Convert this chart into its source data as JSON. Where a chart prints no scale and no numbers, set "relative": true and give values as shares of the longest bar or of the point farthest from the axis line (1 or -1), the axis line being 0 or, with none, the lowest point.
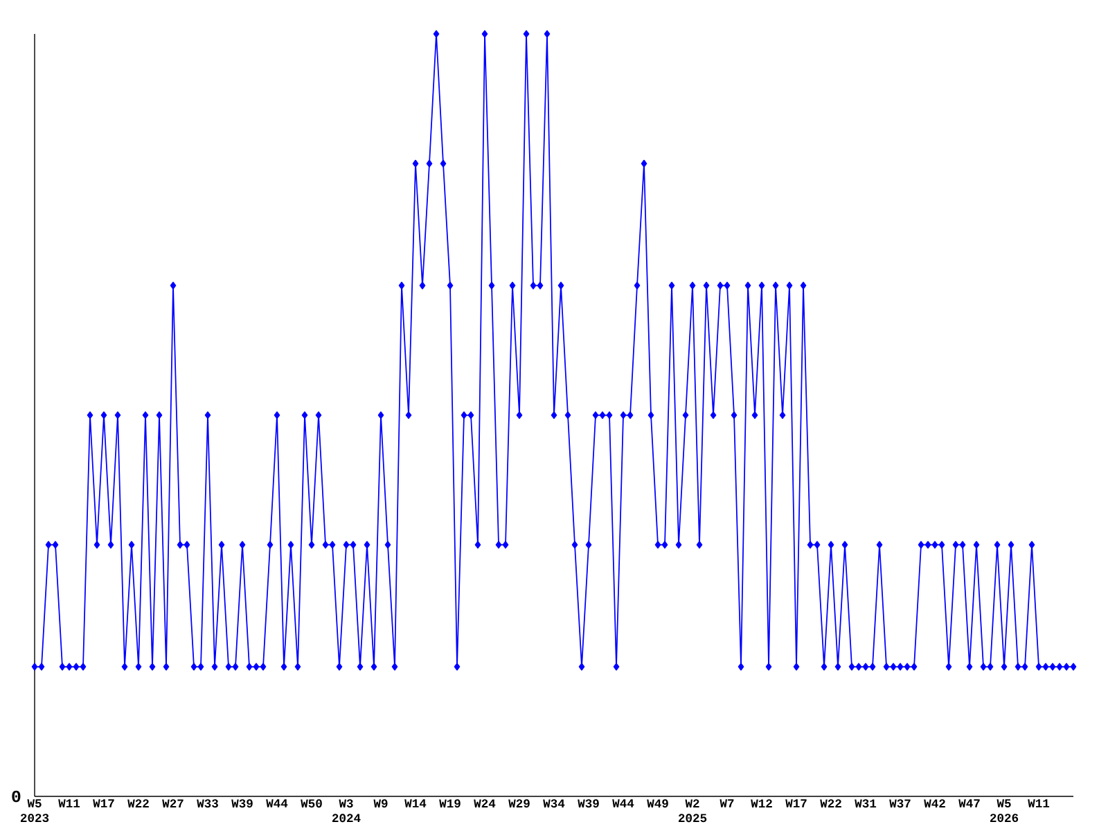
{
  "chart_data": {
    "type": "line",
    "relative": true,
    "marker": "diamond",
    "line_style": "solid",
    "annotations": [
      "0"
    ],
    "categories": [
      "W5 2023",
      null,
      null,
      null,
      null,
      "W11",
      null,
      null,
      null,
      null,
      "W17",
      null,
      null,
      null,
      null,
      "W22",
      null,
      null,
      null,
      null,
      "W27",
      null,
      null,
      null,
      null,
      "W33",
      null,
      null,
      null,
      null,
      "W39",
      null,
      null,
      null,
      null,
      "W44",
      null,
      null,
      null,
      null,
      "W50",
      null,
      null,
      null,
      null,
      "W3 2024",
      null,
      null,
      null,
      null,
      "W9",
      null,
      null,
      null,
      null,
      "W14",
      null,
      null,
      null,
      null,
      "W19",
      null,
      null,
      null,
      null,
      "W24",
      null,
      null,
      null,
      null,
      "W29",
      null,
      null,
      null,
      null,
      "W34",
      null,
      null,
      null,
      null,
      "W39",
      null,
      null,
      null,
      null,
      "W44",
      null,
      null,
      null,
      null,
      "W49",
      null,
      null,
      null,
      null,
      "W2 2025",
      null,
      null,
      null,
      null,
      "W7",
      null,
      null,
      null,
      null,
      "W12",
      null,
      null,
      null,
      null,
      "W17",
      null,
      null,
      null,
      null,
      "W22",
      null,
      null,
      null,
      null,
      "W31",
      null,
      null,
      null,
      null,
      "W37",
      null,
      null,
      null,
      null,
      "W42",
      null,
      null,
      null,
      null,
      "W47",
      null,
      null,
      null,
      null,
      "W5 2026",
      null,
      null,
      null,
      null,
      "W11",
      null,
      null,
      null,
      null,
      null
    ],
    "series": [
      {
        "color": "#0000ff",
        "values": [
          0.17,
          0.17,
          0.33,
          0.33,
          0.17,
          0.17,
          0.17,
          0.17,
          0.5,
          0.33,
          0.5,
          0.33,
          0.5,
          0.17,
          0.33,
          0.17,
          0.5,
          0.17,
          0.5,
          0.17,
          0.67,
          0.33,
          0.33,
          0.17,
          0.17,
          0.5,
          0.17,
          0.33,
          0.17,
          0.17,
          0.33,
          0.17,
          0.17,
          0.17,
          0.33,
          0.5,
          0.17,
          0.33,
          0.17,
          0.5,
          0.33,
          0.5,
          0.33,
          0.33,
          0.17,
          0.33,
          0.33,
          0.17,
          0.33,
          0.17,
          0.5,
          0.33,
          0.17,
          0.67,
          0.5,
          0.83,
          0.67,
          0.83,
          1,
          0.83,
          0.67,
          0.17,
          0.5,
          0.5,
          0.33,
          1,
          0.67,
          0.33,
          0.33,
          0.67,
          0.5,
          1,
          0.67,
          0.67,
          1,
          0.5,
          0.67,
          0.5,
          0.33,
          0.17,
          0.33,
          0.5,
          0.5,
          0.5,
          0.17,
          0.5,
          0.5,
          0.67,
          0.83,
          0.5,
          0.33,
          0.33,
          0.67,
          0.33,
          0.5,
          0.67,
          0.33,
          0.67,
          0.5,
          0.67,
          0.67,
          0.5,
          0.17,
          0.67,
          0.5,
          0.67,
          0.17,
          0.67,
          0.5,
          0.67,
          0.17,
          0.67,
          0.33,
          0.33,
          0.17,
          0.33,
          0.17,
          0.33,
          0.17,
          0.17,
          0.17,
          0.17,
          0.33,
          0.17,
          0.17,
          0.17,
          0.17,
          0.17,
          0.33,
          0.33,
          0.33,
          0.33,
          0.17,
          0.33,
          0.33,
          0.17,
          0.33,
          0.17,
          0.17,
          0.33,
          0.17,
          0.33,
          0.17,
          0.17,
          0.33,
          0.17,
          0.17,
          0.17,
          0.17,
          0.17,
          0.17
        ]
      }
    ]
  }
}
